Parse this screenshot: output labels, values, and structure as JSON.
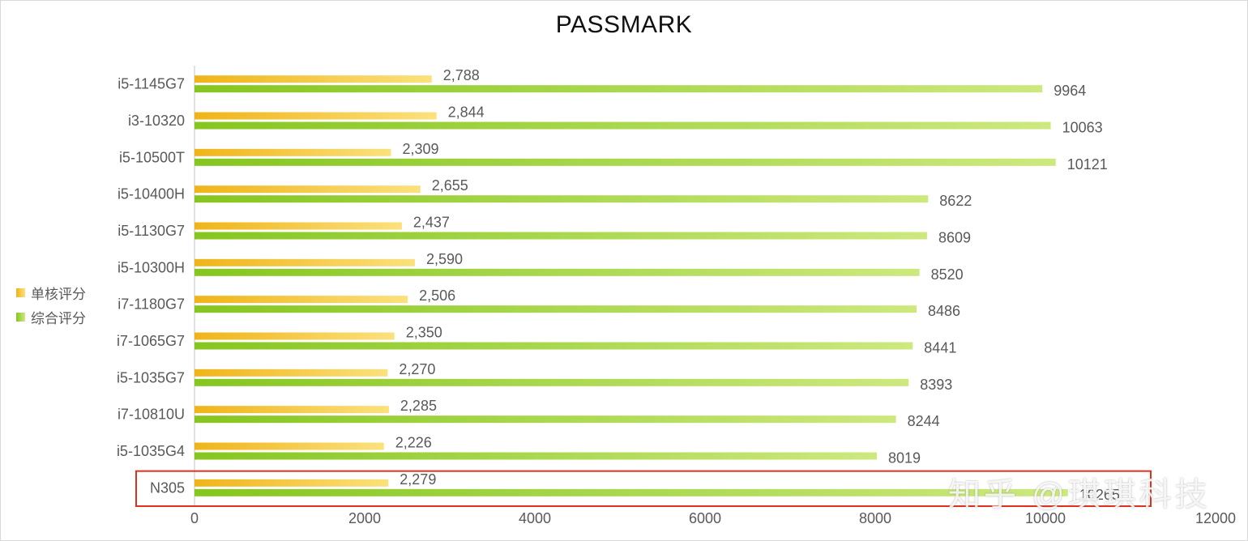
{
  "chart_data": {
    "type": "bar",
    "orientation": "horizontal",
    "title": "PASSMARK",
    "categories": [
      "i5-1145G7",
      "i3-10320",
      "i5-10500T",
      "i5-10400H",
      "i5-1130G7",
      "i5-10300H",
      "i7-1180G7",
      "i7-1065G7",
      "i5-1035G7",
      "i7-10810U",
      "i5-1035G4",
      "N305"
    ],
    "series": [
      {
        "name": "单核评分",
        "values": [
          2788,
          2844,
          2309,
          2655,
          2437,
          2590,
          2506,
          2350,
          2270,
          2285,
          2226,
          2279
        ],
        "labels": [
          "2,788",
          "2,844",
          "2,309",
          "2,655",
          "2,437",
          "2,590",
          "2,506",
          "2,350",
          "2,270",
          "2,285",
          "2,226",
          "2,279"
        ],
        "color_start": "#f0b418",
        "color_end": "#fbe17d"
      },
      {
        "name": "综合评分",
        "values": [
          9964,
          10063,
          10121,
          8622,
          8609,
          8520,
          8486,
          8441,
          8393,
          8244,
          8019,
          10265
        ],
        "labels": [
          "9964",
          "10063",
          "10121",
          "8622",
          "8609",
          "8520",
          "8486",
          "8441",
          "8393",
          "8244",
          "8019",
          "10265"
        ],
        "color_start": "#86c61f",
        "color_end": "#cde97e"
      }
    ],
    "xlim": [
      0,
      12000
    ],
    "xticks": [
      "0",
      "2000",
      "4000",
      "6000",
      "8000",
      "10000",
      "12000"
    ],
    "gridlines": false,
    "legend_position": "left",
    "highlighted_category": "N305",
    "highlight_color": "#e0301e"
  },
  "watermark": "知乎 @琪琪科技"
}
